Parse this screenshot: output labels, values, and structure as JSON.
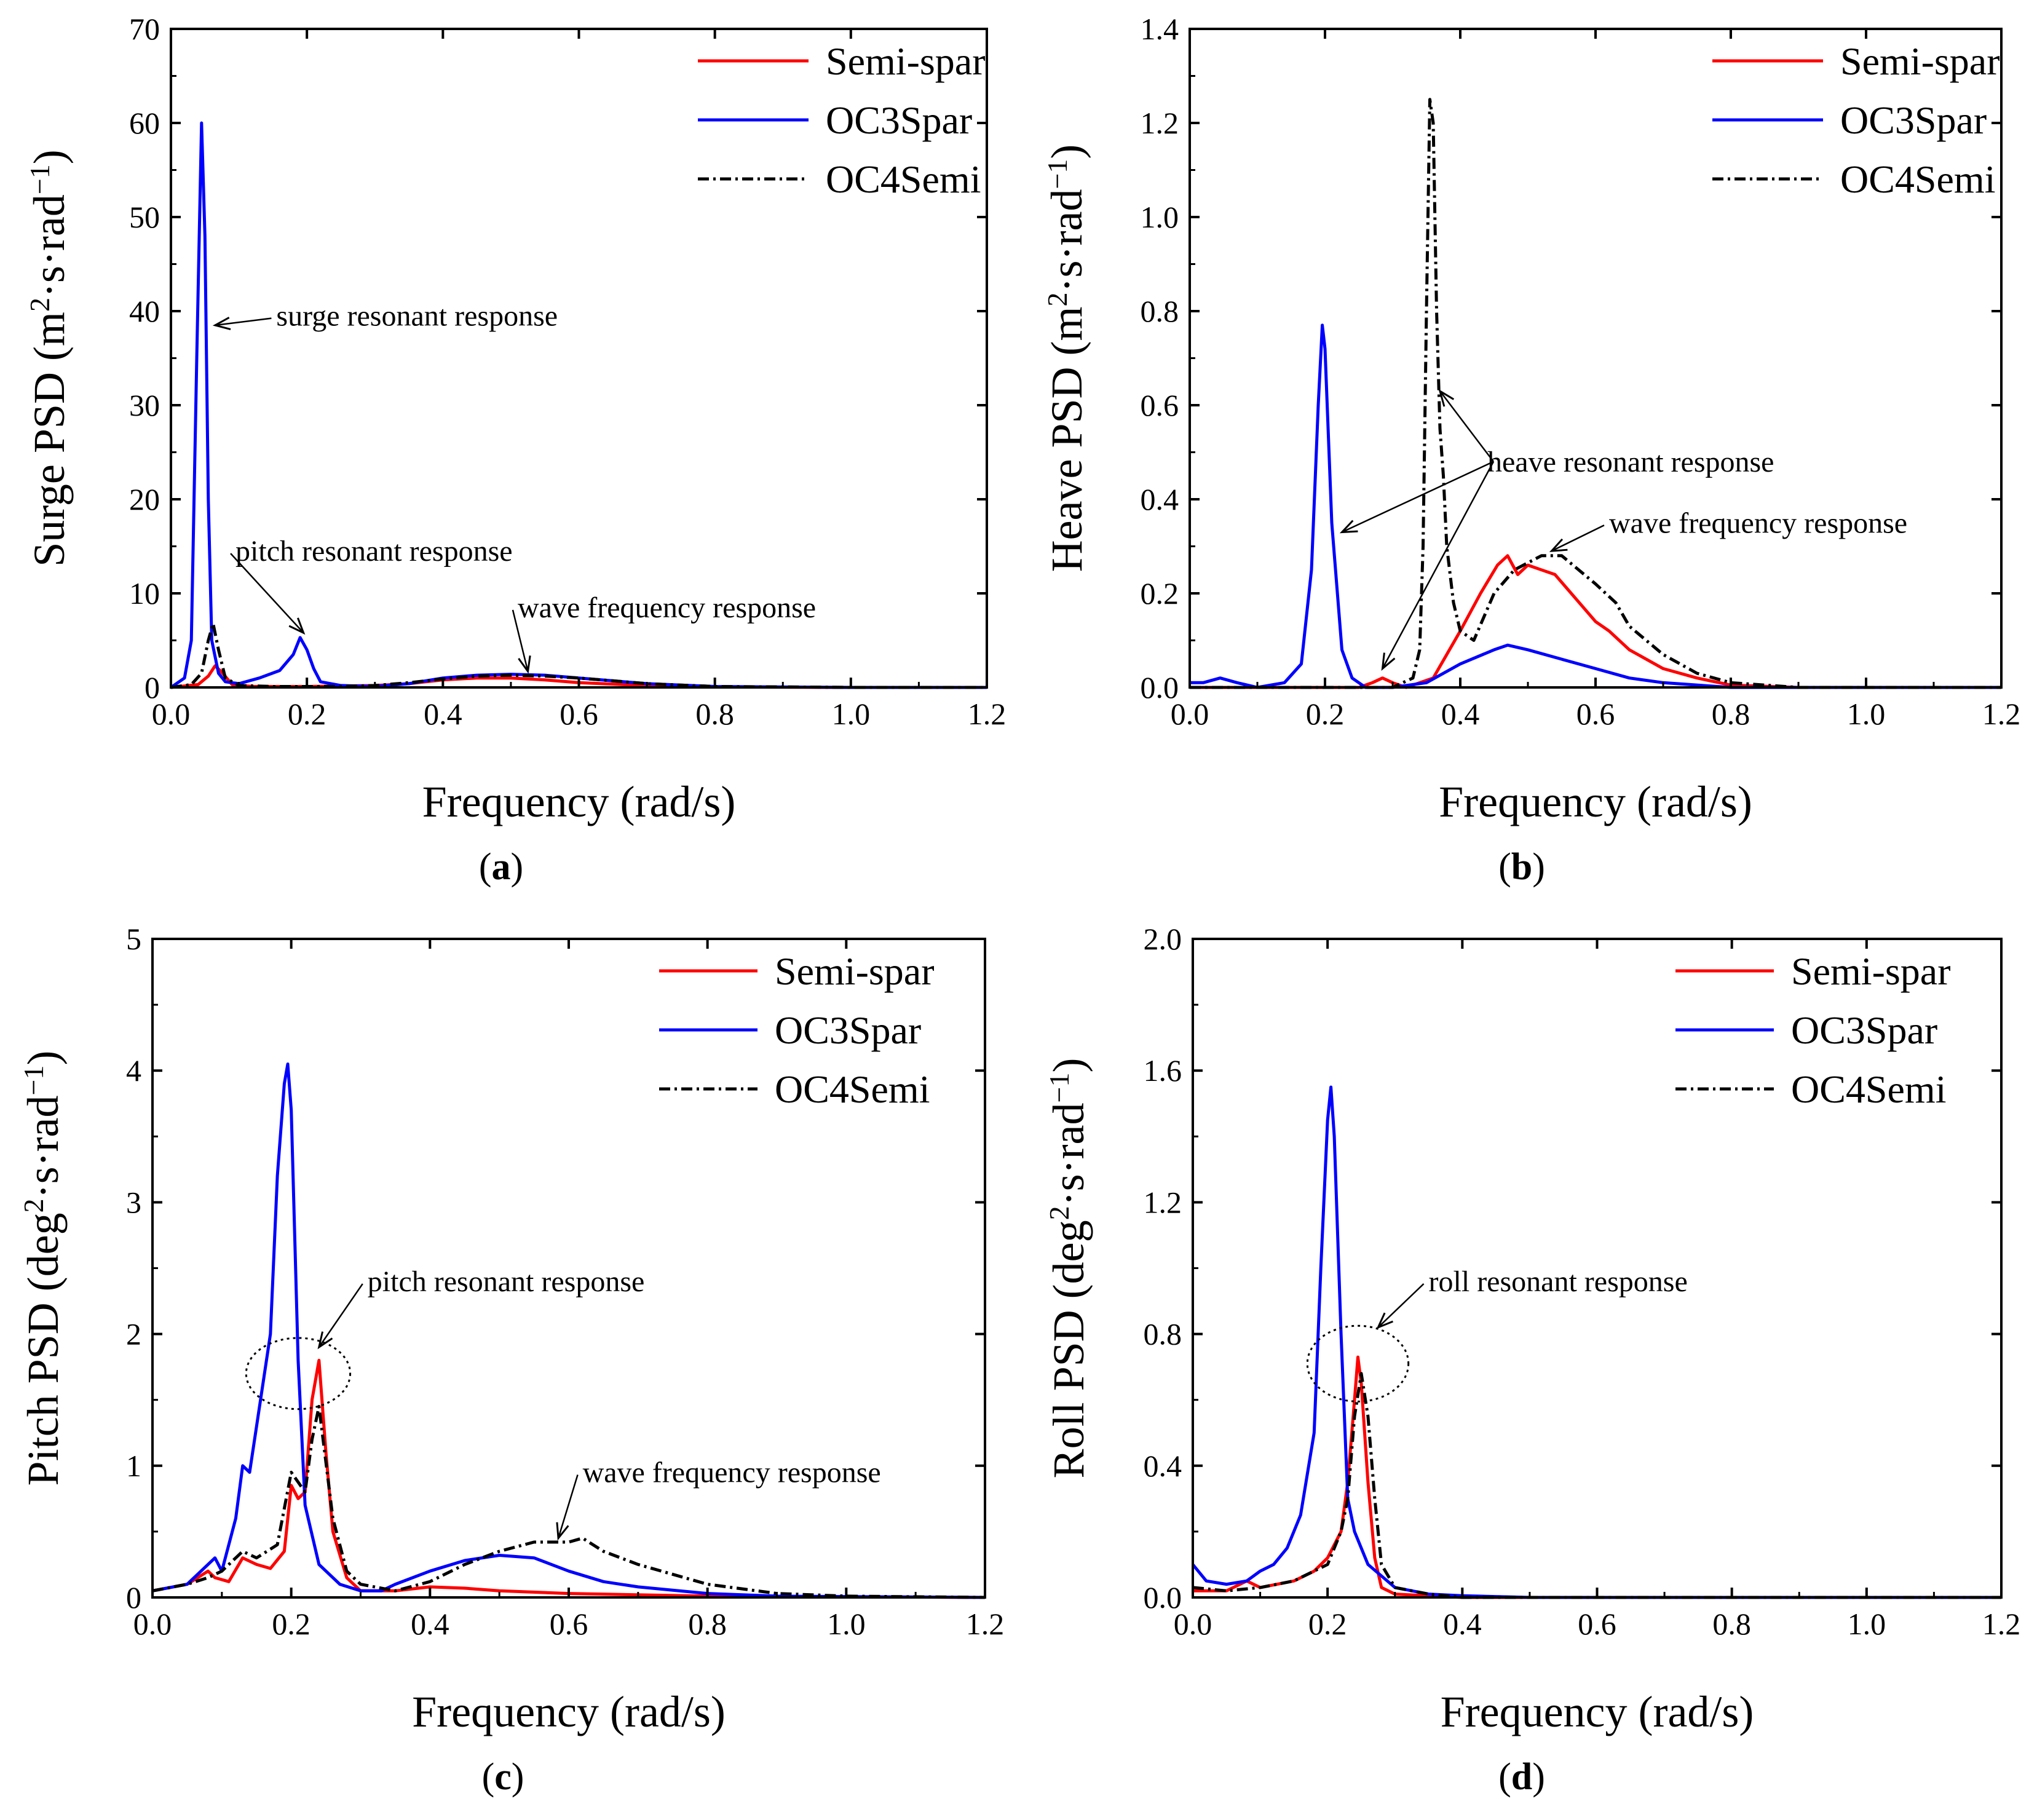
{
  "series_styles": {
    "Semi-spar": {
      "color": "#ff0000",
      "dash": ""
    },
    "OC3Spar": {
      "color": "#0000ff",
      "dash": ""
    },
    "OC4Semi": {
      "color": "#000000",
      "dash": "18,7,4,7"
    }
  },
  "chart_data": [
    {
      "id": "a",
      "type": "line",
      "panel_label": "a",
      "xlabel": "Frequency (rad/s)",
      "ylabel": "Surge PSD (m²·s·rad⁻¹)",
      "xlim": [
        0,
        1.2
      ],
      "ylim": [
        0,
        70
      ],
      "xticks": [
        0,
        0.2,
        0.4,
        0.6,
        0.8,
        1.0,
        1.2
      ],
      "xtick_labels": [
        "0.0",
        "0.2",
        "0.4",
        "0.6",
        "0.8",
        "1.0",
        "1.2"
      ],
      "yticks": [
        0,
        10,
        20,
        30,
        40,
        50,
        60,
        70
      ],
      "ytick_labels": [
        "0",
        "10",
        "20",
        "30",
        "40",
        "50",
        "60",
        "70"
      ],
      "legend": [
        "Semi-spar",
        "OC3Spar",
        "OC4Semi"
      ],
      "series": [
        {
          "name": "Semi-spar",
          "x": [
            0,
            0.04,
            0.055,
            0.065,
            0.075,
            0.09,
            0.12,
            0.2,
            0.3,
            0.35,
            0.4,
            0.45,
            0.5,
            0.55,
            0.6,
            0.7,
            0.8,
            1.0,
            1.2
          ],
          "y": [
            0,
            0.3,
            1.2,
            2.3,
            1.6,
            0.3,
            0.1,
            0.1,
            0.2,
            0.4,
            0.8,
            1.0,
            1.0,
            0.8,
            0.5,
            0.2,
            0.05,
            0,
            0
          ]
        },
        {
          "name": "OC3Spar",
          "x": [
            0,
            0.02,
            0.03,
            0.038,
            0.045,
            0.05,
            0.055,
            0.06,
            0.07,
            0.08,
            0.1,
            0.13,
            0.16,
            0.18,
            0.19,
            0.2,
            0.21,
            0.22,
            0.25,
            0.3,
            0.35,
            0.4,
            0.45,
            0.5,
            0.55,
            0.6,
            0.65,
            0.7,
            0.8,
            1.0,
            1.2
          ],
          "y": [
            0,
            1,
            5,
            35,
            60,
            48,
            20,
            5,
            1.5,
            0.6,
            0.4,
            1.0,
            1.8,
            3.5,
            5.3,
            4.0,
            2.0,
            0.6,
            0.2,
            0.1,
            0.4,
            1.0,
            1.3,
            1.4,
            1.3,
            1.0,
            0.7,
            0.4,
            0.1,
            0,
            0
          ]
        },
        {
          "name": "OC4Semi",
          "x": [
            0,
            0.03,
            0.045,
            0.055,
            0.062,
            0.07,
            0.08,
            0.1,
            0.15,
            0.25,
            0.3,
            0.35,
            0.4,
            0.45,
            0.5,
            0.55,
            0.6,
            0.65,
            0.7,
            0.8,
            1.0,
            1.2
          ],
          "y": [
            0,
            0.3,
            1.5,
            5,
            6.8,
            4,
            1,
            0.2,
            0.1,
            0.1,
            0.2,
            0.5,
            0.9,
            1.2,
            1.3,
            1.2,
            1.0,
            0.7,
            0.4,
            0.1,
            0,
            0
          ]
        }
      ],
      "annotations": [
        {
          "text": "surge resonant response",
          "xy": [
            0.065,
            38.5
          ],
          "xytext": [
            0.155,
            39.5
          ]
        },
        {
          "text": "pitch resonant response",
          "xy": [
            0.195,
            5.8
          ],
          "xytext": [
            0.095,
            14.5
          ]
        },
        {
          "text": "wave frequency response",
          "xy": [
            0.525,
            1.7
          ],
          "xytext": [
            0.51,
            8.5
          ]
        }
      ]
    },
    {
      "id": "b",
      "type": "line",
      "panel_label": "b",
      "xlabel": "Frequency (rad/s)",
      "ylabel": "Heave PSD (m²·s·rad⁻¹)",
      "xlim": [
        0,
        1.2
      ],
      "ylim": [
        0,
        1.4
      ],
      "xticks": [
        0,
        0.2,
        0.4,
        0.6,
        0.8,
        1.0,
        1.2
      ],
      "xtick_labels": [
        "0.0",
        "0.2",
        "0.4",
        "0.6",
        "0.8",
        "1.0",
        "1.2"
      ],
      "yticks": [
        0,
        0.2,
        0.4,
        0.6,
        0.8,
        1.0,
        1.2,
        1.4
      ],
      "ytick_labels": [
        "0.0",
        "0.2",
        "0.4",
        "0.6",
        "0.8",
        "1.0",
        "1.2",
        "1.4"
      ],
      "legend": [
        "Semi-spar",
        "OC3Spar",
        "OC4Semi"
      ],
      "series": [
        {
          "name": "Semi-spar",
          "x": [
            0,
            0.25,
            0.27,
            0.285,
            0.3,
            0.32,
            0.36,
            0.4,
            0.43,
            0.455,
            0.47,
            0.485,
            0.5,
            0.52,
            0.54,
            0.57,
            0.6,
            0.62,
            0.65,
            0.7,
            0.75,
            0.8,
            0.9,
            1.2
          ],
          "y": [
            0,
            0,
            0.01,
            0.02,
            0.01,
            0,
            0.02,
            0.12,
            0.2,
            0.26,
            0.28,
            0.24,
            0.26,
            0.25,
            0.24,
            0.19,
            0.14,
            0.12,
            0.08,
            0.04,
            0.02,
            0.005,
            0,
            0
          ]
        },
        {
          "name": "OC3Spar",
          "x": [
            0,
            0.02,
            0.045,
            0.07,
            0.1,
            0.14,
            0.165,
            0.18,
            0.19,
            0.196,
            0.2,
            0.21,
            0.225,
            0.24,
            0.26,
            0.3,
            0.35,
            0.4,
            0.45,
            0.47,
            0.5,
            0.55,
            0.6,
            0.65,
            0.7,
            0.8,
            1.2
          ],
          "y": [
            0.01,
            0.01,
            0.02,
            0.01,
            0,
            0.01,
            0.05,
            0.25,
            0.6,
            0.77,
            0.72,
            0.35,
            0.08,
            0.02,
            0,
            0,
            0.01,
            0.05,
            0.08,
            0.09,
            0.08,
            0.06,
            0.04,
            0.02,
            0.01,
            0,
            0
          ]
        },
        {
          "name": "OC4Semi",
          "x": [
            0,
            0.3,
            0.33,
            0.34,
            0.345,
            0.35,
            0.355,
            0.36,
            0.365,
            0.37,
            0.375,
            0.38,
            0.39,
            0.4,
            0.42,
            0.45,
            0.48,
            0.52,
            0.55,
            0.6,
            0.63,
            0.65,
            0.7,
            0.75,
            0.8,
            0.9,
            1.2
          ],
          "y": [
            0,
            0,
            0.02,
            0.08,
            0.3,
            0.8,
            1.25,
            1.2,
            0.8,
            0.55,
            0.45,
            0.3,
            0.18,
            0.12,
            0.1,
            0.2,
            0.25,
            0.28,
            0.28,
            0.22,
            0.18,
            0.13,
            0.07,
            0.03,
            0.01,
            0,
            0
          ]
        }
      ],
      "annotations": [
        {
          "text": "heave resonant response",
          "label_xy": [
            0.44,
            0.48
          ],
          "arrows": [
            [
              0.225,
              0.33
            ],
            [
              0.37,
              0.63
            ],
            [
              0.285,
              0.04
            ]
          ]
        },
        {
          "text": "wave frequency response",
          "xy": [
            0.535,
            0.29
          ],
          "xytext": [
            0.62,
            0.35
          ]
        }
      ]
    },
    {
      "id": "c",
      "type": "line",
      "panel_label": "c",
      "xlabel": "Frequency (rad/s)",
      "ylabel": "Pitch PSD (deg²·s·rad⁻¹)",
      "xlim": [
        0,
        1.2
      ],
      "ylim": [
        0,
        5
      ],
      "xticks": [
        0,
        0.2,
        0.4,
        0.6,
        0.8,
        1.0,
        1.2
      ],
      "xtick_labels": [
        "0.0",
        "0.2",
        "0.4",
        "0.6",
        "0.8",
        "1.0",
        "1.2"
      ],
      "yticks": [
        0,
        1,
        2,
        3,
        4,
        5
      ],
      "ytick_labels": [
        "0",
        "1",
        "2",
        "3",
        "4",
        "5"
      ],
      "legend": [
        "Semi-spar",
        "OC3Spar",
        "OC4Semi"
      ],
      "series": [
        {
          "name": "Semi-spar",
          "x": [
            0,
            0.05,
            0.08,
            0.09,
            0.11,
            0.13,
            0.15,
            0.17,
            0.19,
            0.2,
            0.21,
            0.22,
            0.23,
            0.24,
            0.25,
            0.26,
            0.28,
            0.3,
            0.35,
            0.4,
            0.45,
            0.5,
            0.6,
            0.8,
            1.2
          ],
          "y": [
            0.05,
            0.1,
            0.2,
            0.15,
            0.12,
            0.3,
            0.25,
            0.22,
            0.35,
            0.85,
            0.75,
            0.8,
            1.5,
            1.8,
            1.1,
            0.5,
            0.15,
            0.05,
            0.05,
            0.08,
            0.07,
            0.05,
            0.03,
            0.01,
            0
          ]
        },
        {
          "name": "OC3Spar",
          "x": [
            0,
            0.05,
            0.08,
            0.09,
            0.1,
            0.12,
            0.13,
            0.14,
            0.15,
            0.17,
            0.18,
            0.19,
            0.195,
            0.2,
            0.21,
            0.22,
            0.24,
            0.27,
            0.3,
            0.33,
            0.35,
            0.4,
            0.45,
            0.5,
            0.55,
            0.6,
            0.65,
            0.7,
            0.8,
            0.9,
            1.2
          ],
          "y": [
            0.05,
            0.1,
            0.25,
            0.3,
            0.2,
            0.6,
            1.0,
            0.95,
            1.3,
            2.0,
            3.2,
            3.9,
            4.05,
            3.7,
            1.8,
            0.7,
            0.25,
            0.1,
            0.05,
            0.05,
            0.1,
            0.2,
            0.28,
            0.32,
            0.3,
            0.2,
            0.12,
            0.08,
            0.03,
            0.01,
            0
          ]
        },
        {
          "name": "OC4Semi",
          "x": [
            0,
            0.05,
            0.08,
            0.1,
            0.13,
            0.15,
            0.18,
            0.2,
            0.22,
            0.23,
            0.24,
            0.26,
            0.28,
            0.3,
            0.35,
            0.4,
            0.45,
            0.5,
            0.55,
            0.6,
            0.62,
            0.65,
            0.7,
            0.8,
            0.9,
            1.0,
            1.2
          ],
          "y": [
            0.05,
            0.1,
            0.15,
            0.2,
            0.35,
            0.3,
            0.4,
            0.95,
            0.8,
            1.2,
            1.45,
            0.6,
            0.2,
            0.1,
            0.05,
            0.12,
            0.25,
            0.35,
            0.42,
            0.42,
            0.45,
            0.35,
            0.25,
            0.1,
            0.03,
            0.01,
            0
          ]
        }
      ],
      "annotations": [
        {
          "text": "pitch resonant response",
          "xy": [
            0.24,
            1.9
          ],
          "xytext": [
            0.31,
            2.4
          ],
          "ellipse_center": [
            0.21,
            1.7
          ],
          "ellipse_radius": [
            0.075,
            0.27
          ]
        },
        {
          "text": "wave frequency response",
          "xy": [
            0.585,
            0.45
          ],
          "xytext": [
            0.62,
            0.95
          ]
        }
      ]
    },
    {
      "id": "d",
      "type": "line",
      "panel_label": "d",
      "xlabel": "Frequency (rad/s)",
      "ylabel": "Roll PSD (deg²·s·rad⁻¹)",
      "xlim": [
        0,
        1.2
      ],
      "ylim": [
        0,
        2.0
      ],
      "xticks": [
        0,
        0.2,
        0.4,
        0.6,
        0.8,
        1.0,
        1.2
      ],
      "xtick_labels": [
        "0.0",
        "0.2",
        "0.4",
        "0.6",
        "0.8",
        "1.0",
        "1.2"
      ],
      "yticks": [
        0,
        0.4,
        0.8,
        1.2,
        1.6,
        2.0
      ],
      "ytick_labels": [
        "0.0",
        "0.4",
        "0.8",
        "1.2",
        "1.6",
        "2.0"
      ],
      "legend": [
        "Semi-spar",
        "OC3Spar",
        "OC4Semi"
      ],
      "series": [
        {
          "name": "Semi-spar",
          "x": [
            0,
            0.05,
            0.08,
            0.1,
            0.15,
            0.18,
            0.2,
            0.22,
            0.23,
            0.24,
            0.245,
            0.25,
            0.26,
            0.27,
            0.28,
            0.3,
            0.4,
            1.2
          ],
          "y": [
            0.02,
            0.02,
            0.05,
            0.03,
            0.05,
            0.08,
            0.12,
            0.2,
            0.35,
            0.6,
            0.73,
            0.65,
            0.35,
            0.12,
            0.03,
            0.01,
            0,
            0
          ]
        },
        {
          "name": "OC3Spar",
          "x": [
            0,
            0.02,
            0.05,
            0.08,
            0.1,
            0.12,
            0.14,
            0.16,
            0.18,
            0.19,
            0.2,
            0.205,
            0.21,
            0.22,
            0.23,
            0.24,
            0.26,
            0.3,
            0.35,
            0.4,
            0.5,
            1.2
          ],
          "y": [
            0.1,
            0.05,
            0.04,
            0.05,
            0.08,
            0.1,
            0.15,
            0.25,
            0.5,
            1.0,
            1.45,
            1.55,
            1.4,
            0.8,
            0.3,
            0.2,
            0.1,
            0.03,
            0.01,
            0.005,
            0,
            0
          ]
        },
        {
          "name": "OC4Semi",
          "x": [
            0,
            0.05,
            0.1,
            0.15,
            0.2,
            0.22,
            0.23,
            0.24,
            0.25,
            0.26,
            0.27,
            0.28,
            0.3,
            0.35,
            0.4,
            1.2
          ],
          "y": [
            0.03,
            0.02,
            0.03,
            0.05,
            0.1,
            0.2,
            0.3,
            0.55,
            0.68,
            0.55,
            0.3,
            0.1,
            0.03,
            0.01,
            0,
            0
          ]
        }
      ],
      "annotations": [
        {
          "text": "roll resonant response",
          "xy": [
            0.275,
            0.82
          ],
          "xytext": [
            0.35,
            0.96
          ],
          "ellipse_center": [
            0.245,
            0.71
          ],
          "ellipse_radius": [
            0.075,
            0.115
          ]
        }
      ]
    }
  ]
}
